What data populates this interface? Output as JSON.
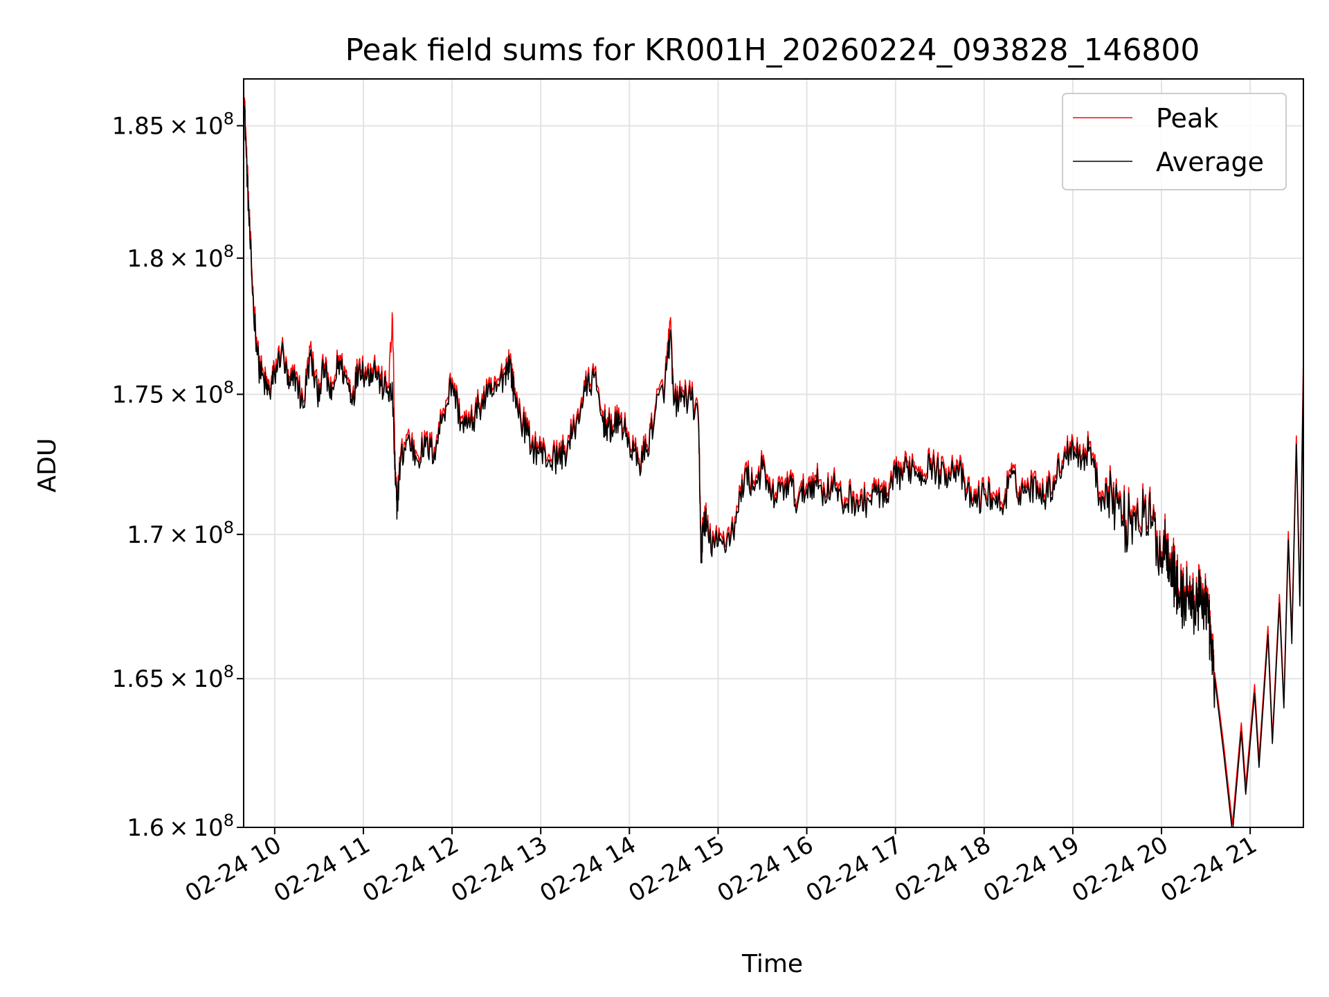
{
  "chart_data": {
    "type": "line",
    "title": "Peak field sums for KR001H_20260224_093828_146800",
    "xlabel": "Time",
    "ylabel": "ADU",
    "x_unit": "hours (decimal, 2026-02-24)",
    "xlim": [
      9.65,
      21.6
    ],
    "ylim": [
      160000000,
      186800000
    ],
    "y_scale": "log",
    "grid": true,
    "legend_position": "top-right",
    "x_ticks": [
      {
        "value": 10,
        "label": "02-24 10"
      },
      {
        "value": 11,
        "label": "02-24 11"
      },
      {
        "value": 12,
        "label": "02-24 12"
      },
      {
        "value": 13,
        "label": "02-24 13"
      },
      {
        "value": 14,
        "label": "02-24 14"
      },
      {
        "value": 15,
        "label": "02-24 15"
      },
      {
        "value": 16,
        "label": "02-24 16"
      },
      {
        "value": 17,
        "label": "02-24 17"
      },
      {
        "value": 18,
        "label": "02-24 18"
      },
      {
        "value": 19,
        "label": "02-24 19"
      },
      {
        "value": 20,
        "label": "02-24 20"
      },
      {
        "value": 21,
        "label": "02-24 21"
      }
    ],
    "y_ticks": [
      {
        "value": 160000000,
        "mantissa": "1.6",
        "exponent": "8"
      },
      {
        "value": 165000000,
        "mantissa": "1.65",
        "exponent": "8"
      },
      {
        "value": 170000000,
        "mantissa": "1.7",
        "exponent": "8"
      },
      {
        "value": 175000000,
        "mantissa": "1.75",
        "exponent": "8"
      },
      {
        "value": 180000000,
        "mantissa": "1.8",
        "exponent": "8"
      },
      {
        "value": 185000000,
        "mantissa": "1.85",
        "exponent": "8"
      }
    ],
    "tick_times_symbol": "×",
    "tick_base": "10",
    "series": [
      {
        "name": "Peak",
        "color": "#ff0000",
        "x": [
          9.65,
          9.68,
          9.72,
          9.76,
          9.82,
          9.88,
          9.94,
          10.0,
          10.08,
          10.16,
          10.24,
          10.32,
          10.4,
          10.48,
          10.56,
          10.64,
          10.72,
          10.8,
          10.88,
          10.96,
          11.04,
          11.12,
          11.2,
          11.28,
          11.33,
          11.36,
          11.38,
          11.42,
          11.5,
          11.6,
          11.7,
          11.8,
          11.9,
          12.0,
          12.1,
          12.2,
          12.3,
          12.4,
          12.5,
          12.6,
          12.65,
          12.7,
          12.8,
          12.9,
          13.0,
          13.1,
          13.2,
          13.3,
          13.4,
          13.5,
          13.6,
          13.7,
          13.76,
          13.8,
          13.9,
          14.0,
          14.1,
          14.2,
          14.3,
          14.4,
          14.46,
          14.5,
          14.6,
          14.7,
          14.78,
          14.81,
          14.83,
          14.86,
          14.9,
          15.0,
          15.1,
          15.2,
          15.3,
          15.4,
          15.5,
          15.6,
          15.7,
          15.8,
          15.9,
          16.0,
          16.1,
          16.2,
          16.3,
          16.4,
          16.5,
          16.6,
          16.7,
          16.8,
          16.9,
          17.0,
          17.1,
          17.2,
          17.3,
          17.4,
          17.5,
          17.6,
          17.7,
          17.8,
          17.9,
          18.0,
          18.1,
          18.2,
          18.3,
          18.4,
          18.5,
          18.6,
          18.7,
          18.8,
          18.9,
          19.0,
          19.1,
          19.2,
          19.3,
          19.4,
          19.5,
          19.6,
          19.7,
          19.8,
          19.9,
          20.0,
          20.05,
          20.1,
          20.16,
          20.2,
          20.25,
          20.3,
          20.35,
          20.4,
          20.45,
          20.5,
          20.53,
          20.56,
          20.6
        ],
        "y": [
          186800000,
          184200000,
          181000000,
          178500000,
          176200000,
          175600000,
          175200000,
          175900000,
          176800000,
          175400000,
          175800000,
          174700000,
          176700000,
          175200000,
          176100000,
          175000000,
          176400000,
          175800000,
          175100000,
          176300000,
          175800000,
          176200000,
          175500000,
          175300000,
          177700000,
          172000000,
          171200000,
          172800000,
          173600000,
          172900000,
          173300000,
          173100000,
          174500000,
          175600000,
          174200000,
          174000000,
          174700000,
          175100000,
          175300000,
          176000000,
          176400000,
          175200000,
          174100000,
          173300000,
          173100000,
          172800000,
          172900000,
          173200000,
          174100000,
          175300000,
          175800000,
          174200000,
          174000000,
          173900000,
          174200000,
          173400000,
          172700000,
          173200000,
          174700000,
          175500000,
          177700000,
          174800000,
          175100000,
          175000000,
          174100000,
          169300000,
          170500000,
          170700000,
          169900000,
          169800000,
          170000000,
          170600000,
          172300000,
          171900000,
          172500000,
          171400000,
          171700000,
          172000000,
          171300000,
          171800000,
          172100000,
          171600000,
          172000000,
          171200000,
          171500000,
          171200000,
          171400000,
          171700000,
          171300000,
          172200000,
          172400000,
          172600000,
          172300000,
          172700000,
          172300000,
          172400000,
          172600000,
          171600000,
          171300000,
          171600000,
          171500000,
          171100000,
          172200000,
          171700000,
          171800000,
          171900000,
          171600000,
          172100000,
          172900000,
          173400000,
          172800000,
          173300000,
          171500000,
          171700000,
          171300000,
          170500000,
          171000000,
          170800000,
          170500000,
          169400000,
          170000000,
          169300000,
          168500000,
          168000000,
          167900000,
          168200000,
          167600000,
          167900000,
          167800000,
          168000000,
          167300000,
          166200000,
          165200000
        ]
      },
      {
        "name": "Average",
        "color": "#000000",
        "x": [
          9.65,
          9.68,
          9.72,
          9.76,
          9.82,
          9.88,
          9.94,
          10.0,
          10.08,
          10.16,
          10.24,
          10.32,
          10.4,
          10.48,
          10.56,
          10.64,
          10.72,
          10.8,
          10.88,
          10.96,
          11.04,
          11.12,
          11.2,
          11.28,
          11.33,
          11.36,
          11.38,
          11.42,
          11.5,
          11.6,
          11.7,
          11.8,
          11.9,
          12.0,
          12.1,
          12.2,
          12.3,
          12.4,
          12.5,
          12.6,
          12.65,
          12.7,
          12.8,
          12.9,
          13.0,
          13.1,
          13.2,
          13.3,
          13.4,
          13.5,
          13.6,
          13.7,
          13.76,
          13.8,
          13.9,
          14.0,
          14.1,
          14.2,
          14.3,
          14.4,
          14.46,
          14.5,
          14.6,
          14.7,
          14.78,
          14.81,
          14.83,
          14.86,
          14.9,
          15.0,
          15.1,
          15.2,
          15.3,
          15.4,
          15.5,
          15.6,
          15.7,
          15.8,
          15.9,
          16.0,
          16.1,
          16.2,
          16.3,
          16.4,
          16.5,
          16.6,
          16.7,
          16.8,
          16.9,
          17.0,
          17.1,
          17.2,
          17.3,
          17.4,
          17.5,
          17.6,
          17.7,
          17.8,
          17.9,
          18.0,
          18.1,
          18.2,
          18.3,
          18.4,
          18.5,
          18.6,
          18.7,
          18.8,
          18.9,
          19.0,
          19.1,
          19.2,
          19.3,
          19.4,
          19.5,
          19.6,
          19.7,
          19.8,
          19.9,
          20.0,
          20.05,
          20.1,
          20.16,
          20.2,
          20.25,
          20.3,
          20.35,
          20.4,
          20.45,
          20.5,
          20.53,
          20.56,
          20.6
        ],
        "y": [
          186500000,
          183800000,
          180700000,
          178200000,
          176000000,
          175400000,
          175000000,
          175700000,
          176600000,
          175200000,
          175600000,
          174500000,
          176400000,
          175000000,
          175900000,
          174800000,
          176200000,
          175600000,
          174900000,
          176100000,
          175600000,
          176000000,
          175300000,
          175100000,
          174900000,
          171800000,
          171000000,
          172600000,
          173400000,
          172700000,
          173100000,
          172900000,
          174300000,
          175400000,
          174000000,
          173800000,
          174500000,
          174900000,
          175100000,
          175800000,
          176200000,
          175000000,
          173900000,
          173100000,
          172900000,
          172600000,
          172700000,
          173000000,
          173900000,
          175100000,
          175600000,
          174000000,
          173800000,
          173700000,
          174000000,
          173200000,
          172500000,
          173000000,
          174500000,
          175300000,
          177200000,
          174600000,
          174900000,
          174800000,
          173900000,
          169000000,
          170300000,
          170500000,
          169700000,
          169600000,
          169800000,
          170400000,
          172100000,
          171700000,
          172300000,
          171200000,
          171500000,
          171800000,
          171100000,
          171600000,
          171900000,
          171400000,
          171800000,
          171000000,
          171300000,
          171000000,
          171200000,
          171500000,
          171100000,
          172000000,
          172200000,
          172400000,
          172100000,
          172500000,
          172100000,
          172200000,
          172400000,
          171400000,
          171100000,
          171400000,
          171300000,
          170900000,
          172000000,
          171500000,
          171600000,
          171700000,
          171400000,
          171900000,
          172700000,
          173200000,
          172600000,
          173100000,
          171300000,
          171500000,
          171100000,
          170300000,
          170800000,
          170600000,
          170300000,
          169200000,
          169800000,
          169100000,
          168300000,
          167800000,
          167700000,
          168000000,
          167400000,
          167700000,
          167600000,
          167800000,
          167100000,
          166000000,
          165000000
        ]
      }
    ]
  }
}
